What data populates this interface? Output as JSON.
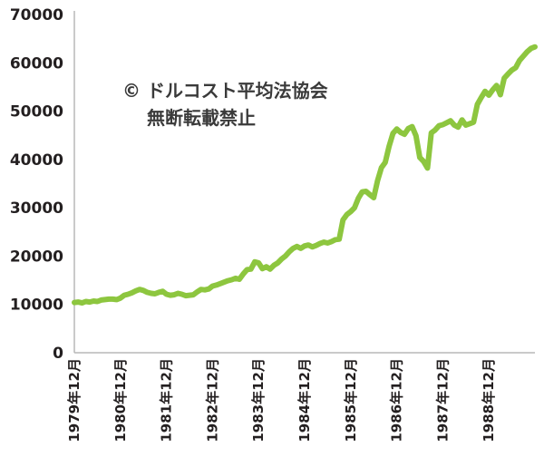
{
  "chart_data": {
    "type": "line",
    "title": "",
    "xlabel": "",
    "ylabel": "",
    "ylim": [
      0,
      70000
    ],
    "yticks": [
      0,
      10000,
      20000,
      30000,
      40000,
      50000,
      60000,
      70000
    ],
    "ytick_labels": [
      "0",
      "10000",
      "20000",
      "30000",
      "40000",
      "50000",
      "60000",
      "70000"
    ],
    "xticks": [
      "1979-12",
      "1980-12",
      "1981-12",
      "1982-12",
      "1983-12",
      "1984-12",
      "1985-12",
      "1986-12",
      "1987-12",
      "1988-12"
    ],
    "xtick_labels": [
      "1979年12月",
      "1980年12月",
      "1981年12月",
      "1982年12月",
      "1983年12月",
      "1984年12月",
      "1985年12月",
      "1986年12月",
      "1987年12月",
      "1988年12月"
    ],
    "xlim": [
      "1979-12",
      "1989-12"
    ],
    "grid": false,
    "line_color": "#8dc63f",
    "annotations": [
      "© ドルコスト平均法協会",
      "無断転載禁止"
    ],
    "series": [
      {
        "x": [
          "1979-12",
          "1980-01",
          "1980-02",
          "1980-03",
          "1980-04",
          "1980-05",
          "1980-06",
          "1980-07",
          "1980-08",
          "1980-09",
          "1980-10",
          "1980-11",
          "1980-12",
          "1981-01",
          "1981-02",
          "1981-03",
          "1981-04",
          "1981-05",
          "1981-06",
          "1981-07",
          "1981-08",
          "1981-09",
          "1981-10",
          "1981-11",
          "1981-12",
          "1982-01",
          "1982-02",
          "1982-03",
          "1982-04",
          "1982-05",
          "1982-06",
          "1982-07",
          "1982-08",
          "1982-09",
          "1982-10",
          "1982-11",
          "1982-12",
          "1983-01",
          "1983-02",
          "1983-03",
          "1983-04",
          "1983-05",
          "1983-06",
          "1983-07",
          "1983-08",
          "1983-09",
          "1983-10",
          "1983-11",
          "1983-12",
          "1984-01",
          "1984-02",
          "1984-03",
          "1984-04",
          "1984-05",
          "1984-06",
          "1984-07",
          "1984-08",
          "1984-09",
          "1984-10",
          "1984-11",
          "1984-12",
          "1985-01",
          "1985-02",
          "1985-03",
          "1985-04",
          "1985-05",
          "1985-06",
          "1985-07",
          "1985-08",
          "1985-09",
          "1985-10",
          "1985-11",
          "1985-12",
          "1986-01",
          "1986-02",
          "1986-03",
          "1986-04",
          "1986-05",
          "1986-06",
          "1986-07",
          "1986-08",
          "1986-09",
          "1986-10",
          "1986-11",
          "1986-12",
          "1987-01",
          "1987-02",
          "1987-03",
          "1987-04",
          "1987-05",
          "1987-06",
          "1987-07",
          "1987-08",
          "1987-09",
          "1987-10",
          "1987-11",
          "1987-12",
          "1988-01",
          "1988-02",
          "1988-03",
          "1988-04",
          "1988-05",
          "1988-06",
          "1988-07",
          "1988-08",
          "1988-09",
          "1988-10",
          "1988-11",
          "1988-12",
          "1989-01",
          "1989-02",
          "1989-03",
          "1989-04",
          "1989-05",
          "1989-06",
          "1989-07",
          "1989-08",
          "1989-09",
          "1989-10",
          "1989-11",
          "1989-12"
        ],
        "values": [
          10400,
          10500,
          10300,
          10600,
          10500,
          10700,
          10600,
          10900,
          11000,
          11100,
          11100,
          11000,
          11300,
          11900,
          12100,
          12400,
          12800,
          13100,
          12900,
          12500,
          12300,
          12200,
          12500,
          12700,
          12100,
          11900,
          12000,
          12300,
          12100,
          11800,
          11900,
          12000,
          12600,
          13100,
          13000,
          13200,
          13800,
          14000,
          14300,
          14600,
          14900,
          15100,
          15400,
          15200,
          16300,
          17200,
          17300,
          18800,
          18600,
          17400,
          17800,
          17300,
          18100,
          18600,
          19400,
          20000,
          20900,
          21600,
          22000,
          21600,
          22100,
          22300,
          21900,
          22200,
          22600,
          22900,
          22700,
          23000,
          23400,
          23500,
          27500,
          28600,
          29200,
          30000,
          32000,
          33300,
          33400,
          32700,
          32100,
          35600,
          38300,
          39400,
          42700,
          45400,
          46300,
          45600,
          45200,
          46400,
          46800,
          44900,
          40400,
          39600,
          38200,
          45500,
          46100,
          47000,
          47200,
          47600,
          48000,
          47100,
          46700,
          48200,
          47100,
          47400,
          47700,
          51400,
          52800,
          54100,
          53300,
          54400,
          55300,
          53400,
          56800,
          57700,
          58500,
          59000,
          60500,
          61400,
          62300,
          63000,
          63300
        ]
      }
    ]
  }
}
